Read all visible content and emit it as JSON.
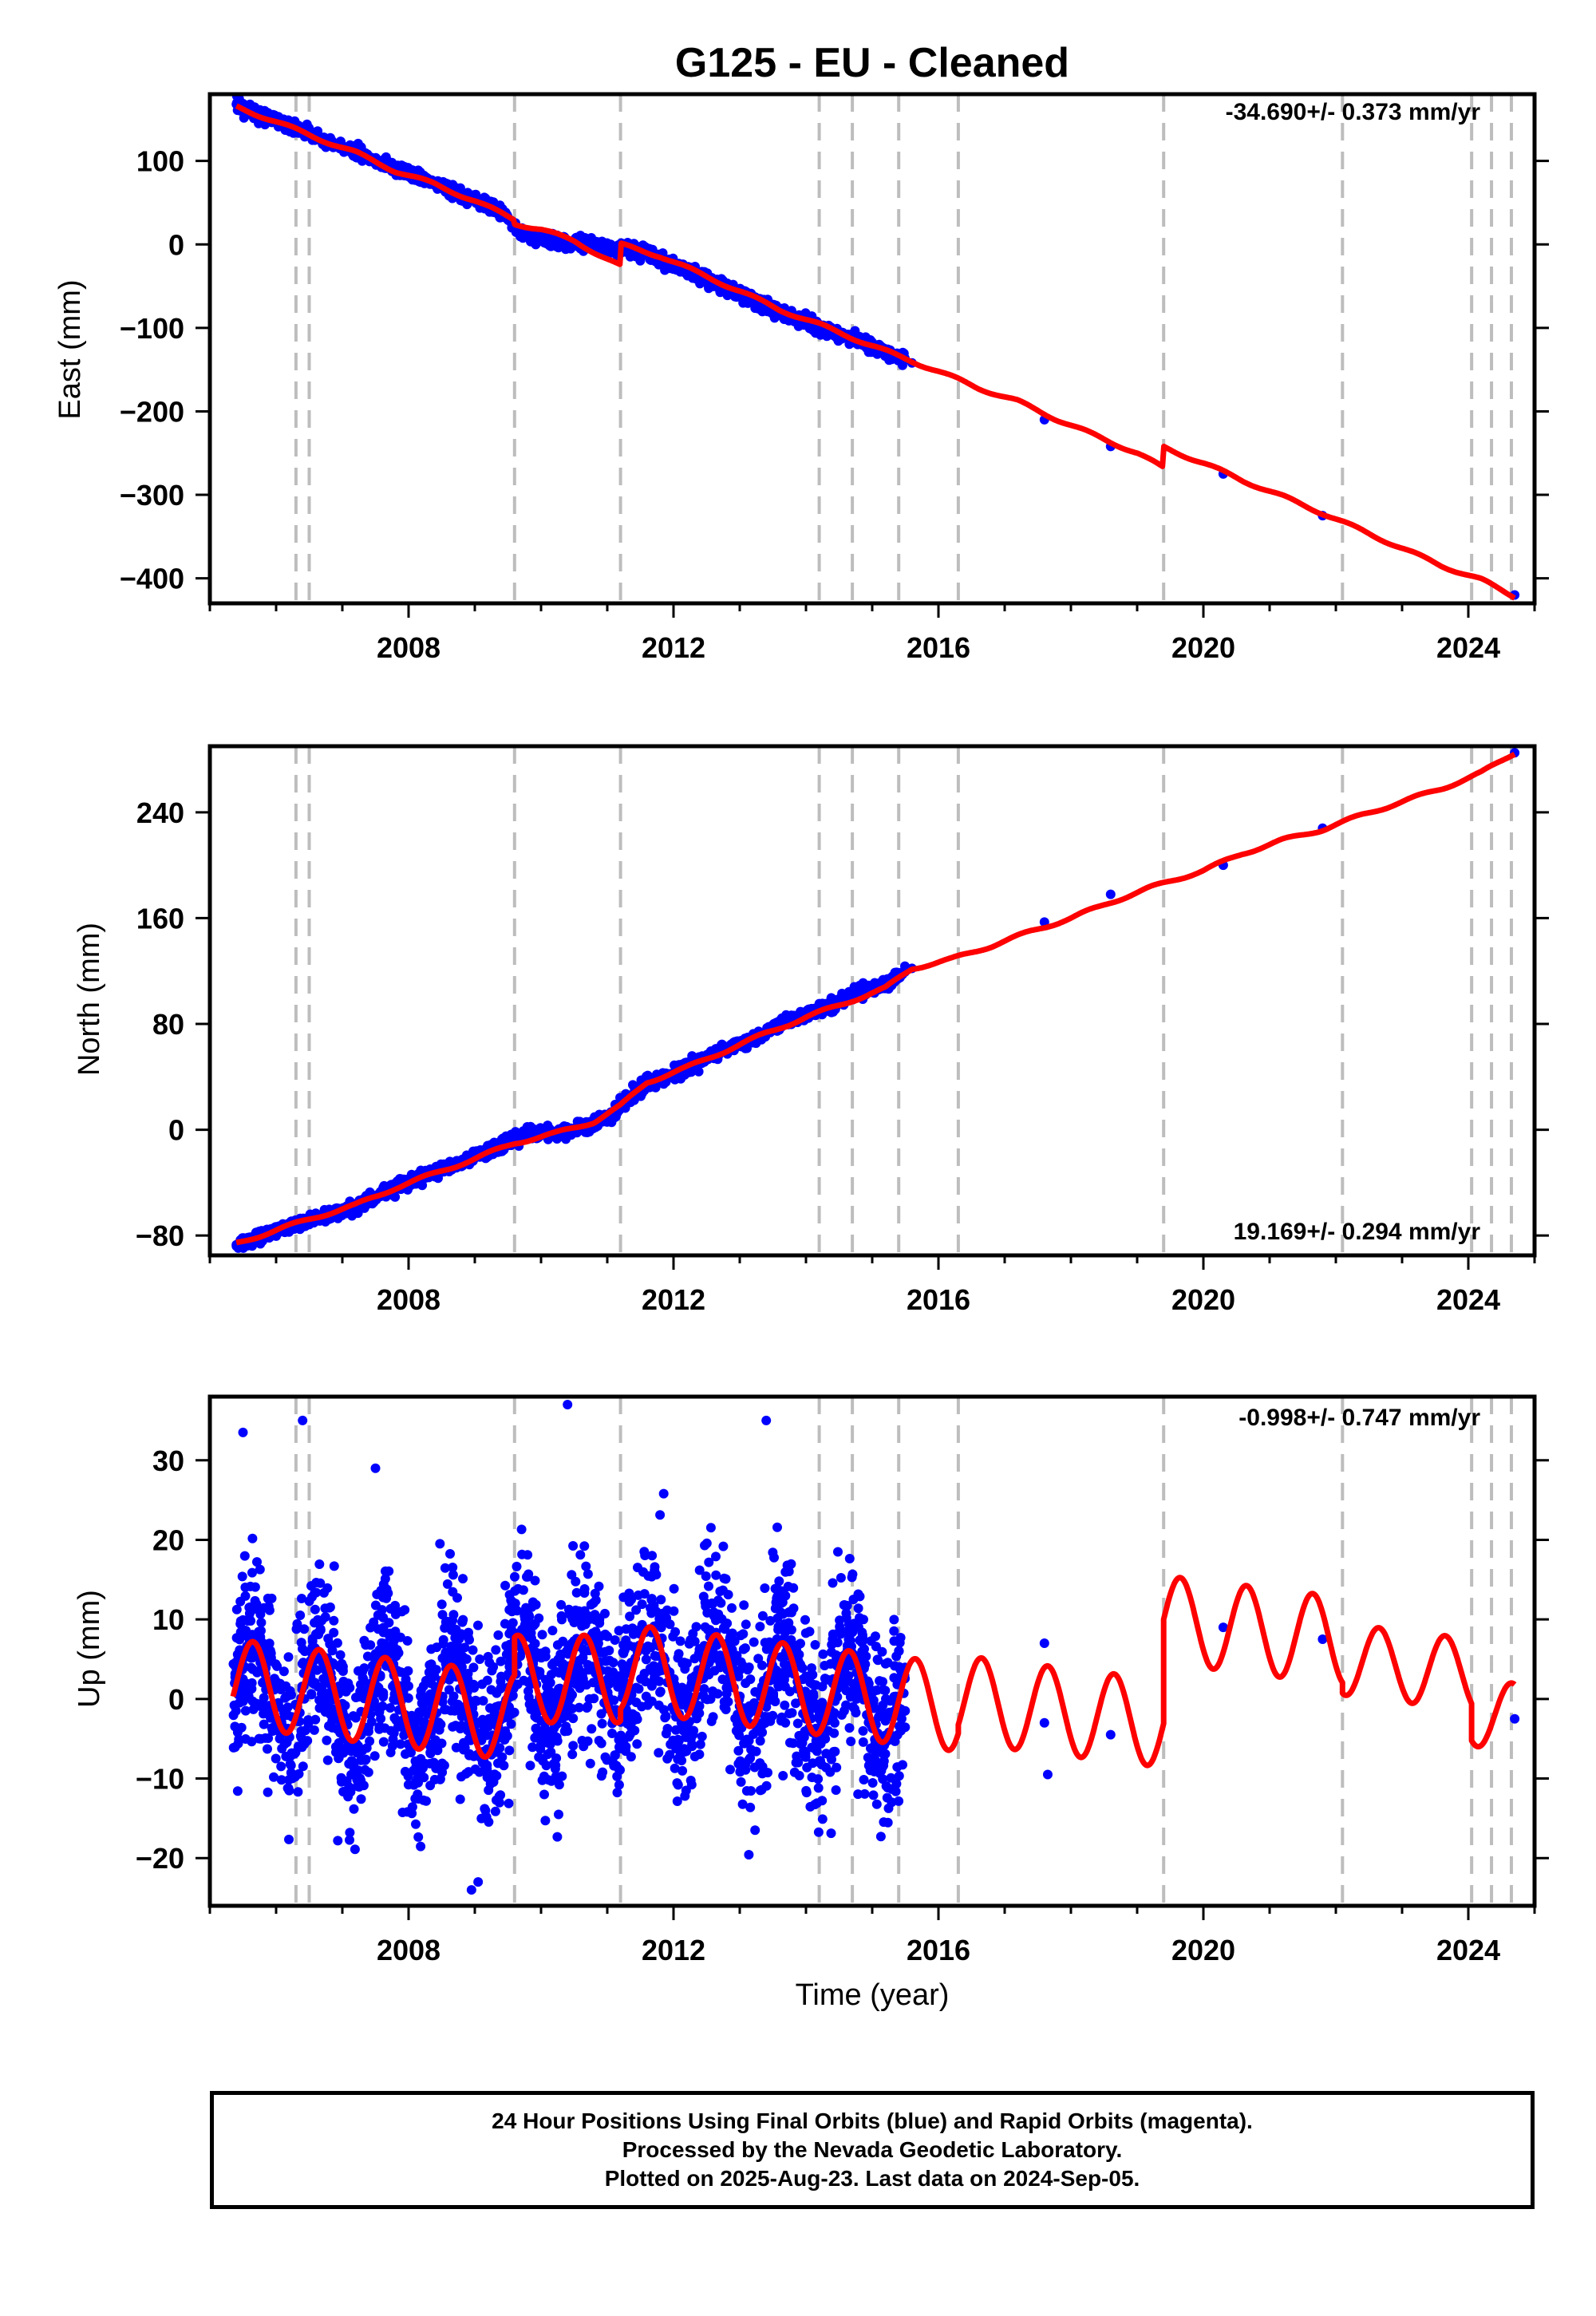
{
  "title": "G125  - EU - Cleaned",
  "colors": {
    "observations": "#0000ff",
    "model": "#ff0000",
    "event_lines": "#bdbdbd",
    "frame": "#000000"
  },
  "footer": {
    "line1": "24 Hour Positions Using Final Orbits (blue) and Rapid Orbits (magenta).",
    "line2": "Processed by the Nevada Geodetic Laboratory.",
    "line3": "Plotted on 2025-Aug-23. Last data on 2024-Sep-05."
  },
  "chart_data": [
    {
      "type": "scatter",
      "component": "east",
      "ylabel": "East (mm)",
      "xlabel": "",
      "rate_label": "-34.690+/- 0.373 mm/yr",
      "xlim": [
        2005.0,
        2025.0
      ],
      "ylim": [
        -430,
        180
      ],
      "xticks": [
        "2008",
        "2012",
        "2016",
        "2020",
        "2024"
      ],
      "yticks": [
        "100",
        "0",
        "−100",
        "−200",
        "−300",
        "−400"
      ],
      "events": [
        2006.3,
        2006.5,
        2009.6,
        2011.2,
        2014.2,
        2014.7,
        2015.4,
        2016.3,
        2019.4,
        2022.1,
        2024.05,
        2024.35,
        2024.65
      ],
      "series": [
        {
          "role": "observations",
          "x": [
            2005.4,
            2005.8,
            2006.2,
            2006.6,
            2007.0,
            2007.4,
            2007.8,
            2008.2,
            2008.6,
            2009.0,
            2009.4,
            2009.7,
            2010.0,
            2010.4,
            2010.8,
            2011.1,
            2011.3,
            2011.7,
            2012.1,
            2012.5,
            2012.9,
            2013.3,
            2013.7,
            2014.1,
            2014.5,
            2014.9,
            2015.3,
            2015.6,
            2017.6,
            2018.6,
            2020.3,
            2021.8,
            2024.7
          ],
          "y": [
            168,
            155,
            142,
            128,
            117,
            104,
            90,
            79,
            66,
            53,
            38,
            12,
            6,
            3,
            0,
            -8,
            -3,
            -15,
            -27,
            -41,
            -56,
            -70,
            -85,
            -95,
            -108,
            -118,
            -132,
            -142,
            -210,
            -242,
            -275,
            -325,
            -420
          ]
        },
        {
          "role": "model",
          "x": [
            2005.4,
            2006.0,
            2006.6,
            2007.2,
            2007.8,
            2008.4,
            2009.0,
            2009.6,
            2009.6,
            2010.0,
            2010.5,
            2011.2,
            2011.2,
            2011.8,
            2012.4,
            2013.0,
            2013.6,
            2014.2,
            2014.8,
            2015.4,
            2016.0,
            2016.6,
            2017.2,
            2017.8,
            2018.4,
            2019.0,
            2019.4,
            2019.4,
            2020.0,
            2020.6,
            2021.2,
            2021.8,
            2022.4,
            2023.0,
            2023.6,
            2024.2,
            2024.7
          ],
          "y": [
            165,
            147,
            128,
            110,
            88,
            72,
            52,
            30,
            25,
            18,
            4,
            -26,
            0,
            -14,
            -35,
            -56,
            -78,
            -96,
            -115,
            -134,
            -152,
            -172,
            -188,
            -210,
            -230,
            -250,
            -268,
            -243,
            -262,
            -283,
            -302,
            -322,
            -343,
            -364,
            -385,
            -402,
            -422
          ]
        }
      ]
    },
    {
      "type": "scatter",
      "component": "north",
      "ylabel": "North (mm)",
      "xlabel": "",
      "rate_label": "19.169+/- 0.294 mm/yr",
      "xlim": [
        2005.0,
        2025.0
      ],
      "ylim": [
        -95,
        290
      ],
      "xticks": [
        "2008",
        "2012",
        "2016",
        "2020",
        "2024"
      ],
      "yticks": [
        "240",
        "160",
        "80",
        "0",
        "−80"
      ],
      "events": [
        2006.3,
        2006.5,
        2009.6,
        2011.2,
        2014.2,
        2014.7,
        2015.4,
        2016.3,
        2019.4,
        2022.1,
        2024.05,
        2024.35,
        2024.65
      ],
      "series": [
        {
          "role": "observations",
          "x": [
            2005.4,
            2005.8,
            2006.2,
            2006.6,
            2007.0,
            2007.4,
            2007.8,
            2008.2,
            2008.6,
            2009.0,
            2009.4,
            2009.8,
            2010.2,
            2010.6,
            2011.0,
            2011.3,
            2011.6,
            2012.0,
            2012.4,
            2012.8,
            2013.2,
            2013.6,
            2014.0,
            2014.4,
            2014.8,
            2015.2,
            2015.6,
            2017.6,
            2018.6,
            2020.3,
            2021.8,
            2024.7
          ],
          "y": [
            -87,
            -80,
            -73,
            -67,
            -62,
            -54,
            -43,
            -36,
            -28,
            -20,
            -12,
            -2,
            -3,
            1,
            8,
            22,
            35,
            43,
            52,
            62,
            68,
            80,
            87,
            94,
            104,
            110,
            122,
            157,
            178,
            200,
            228,
            285
          ]
        },
        {
          "role": "model",
          "x": [
            2005.4,
            2006.0,
            2006.6,
            2007.2,
            2007.8,
            2008.4,
            2009.0,
            2009.6,
            2010.2,
            2010.8,
            2011.2,
            2011.6,
            2012.2,
            2012.8,
            2013.4,
            2014.0,
            2014.6,
            2015.2,
            2015.6,
            2016.2,
            2016.8,
            2017.4,
            2018.0,
            2018.6,
            2019.2,
            2019.5,
            2020.0,
            2020.6,
            2021.2,
            2021.8,
            2022.4,
            2023.0,
            2023.6,
            2024.2,
            2024.7
          ],
          "y": [
            -86,
            -76,
            -66,
            -57,
            -44,
            -33,
            -22,
            -10,
            -3,
            6,
            18,
            36,
            47,
            60,
            73,
            85,
            96,
            107,
            122,
            129,
            139,
            150,
            160,
            172,
            183,
            188,
            196,
            209,
            219,
            227,
            238,
            248,
            258,
            270,
            285
          ]
        }
      ]
    },
    {
      "type": "scatter",
      "component": "up",
      "ylabel": "Up (mm)",
      "xlabel": "Time (year)",
      "rate_label": "-0.998+/- 0.747 mm/yr",
      "xlim": [
        2005.0,
        2025.0
      ],
      "ylim": [
        -26,
        38
      ],
      "xticks": [
        "2008",
        "2012",
        "2016",
        "2020",
        "2024"
      ],
      "yticks": [
        "30",
        "20",
        "10",
        "0",
        "−10",
        "−20"
      ],
      "events": [
        2006.3,
        2006.5,
        2009.6,
        2011.2,
        2014.2,
        2014.7,
        2015.4,
        2016.3,
        2019.4,
        2022.1,
        2024.05,
        2024.35,
        2024.65
      ],
      "annual_model": {
        "segments": [
          {
            "from": 2005.35,
            "to": 2009.6,
            "offset": 2.0,
            "slope": -1.0,
            "t0": 2005.35,
            "amp": 5.5
          },
          {
            "from": 2009.6,
            "to": 2011.2,
            "offset": 2.5,
            "slope": 0.0,
            "t0": 2009.6,
            "amp": 5.5
          },
          {
            "from": 2011.2,
            "to": 2016.3,
            "offset": 4.0,
            "slope": -1.0,
            "t0": 2011.2,
            "amp": 5.5
          },
          {
            "from": 2016.3,
            "to": 2019.4,
            "offset": 0.0,
            "slope": -1.0,
            "t0": 2016.3,
            "amp": 5.5
          },
          {
            "from": 2019.4,
            "to": 2022.1,
            "offset": 10.0,
            "slope": -1.0,
            "t0": 2019.4,
            "amp": 5.5
          },
          {
            "from": 2022.1,
            "to": 2024.05,
            "offset": 5.0,
            "slope": -1.0,
            "t0": 2022.1,
            "amp": 4.5
          },
          {
            "from": 2024.05,
            "to": 2024.7,
            "offset": -2.0,
            "slope": 0.0,
            "t0": 2024.05,
            "amp": 4.0
          }
        ],
        "phase": 0.4
      },
      "observations": {
        "dense_from": 2005.35,
        "dense_to": 2015.5,
        "n": 2400,
        "scatter_sd": 5.5,
        "sparse_x": [
          2017.6,
          2017.6,
          2017.65,
          2018.6,
          2020.3,
          2021.8,
          2024.7
        ],
        "sparse_y": [
          7,
          -3,
          -9.5,
          -4.5,
          9,
          7.5,
          -2.5
        ],
        "outliers_x": [
          2005.5,
          2006.4,
          2007.5,
          2010.4,
          2013.4,
          2008.95,
          2009.05
        ],
        "outliers_y": [
          33.5,
          35,
          29,
          37,
          35,
          -24,
          -23
        ]
      }
    }
  ]
}
